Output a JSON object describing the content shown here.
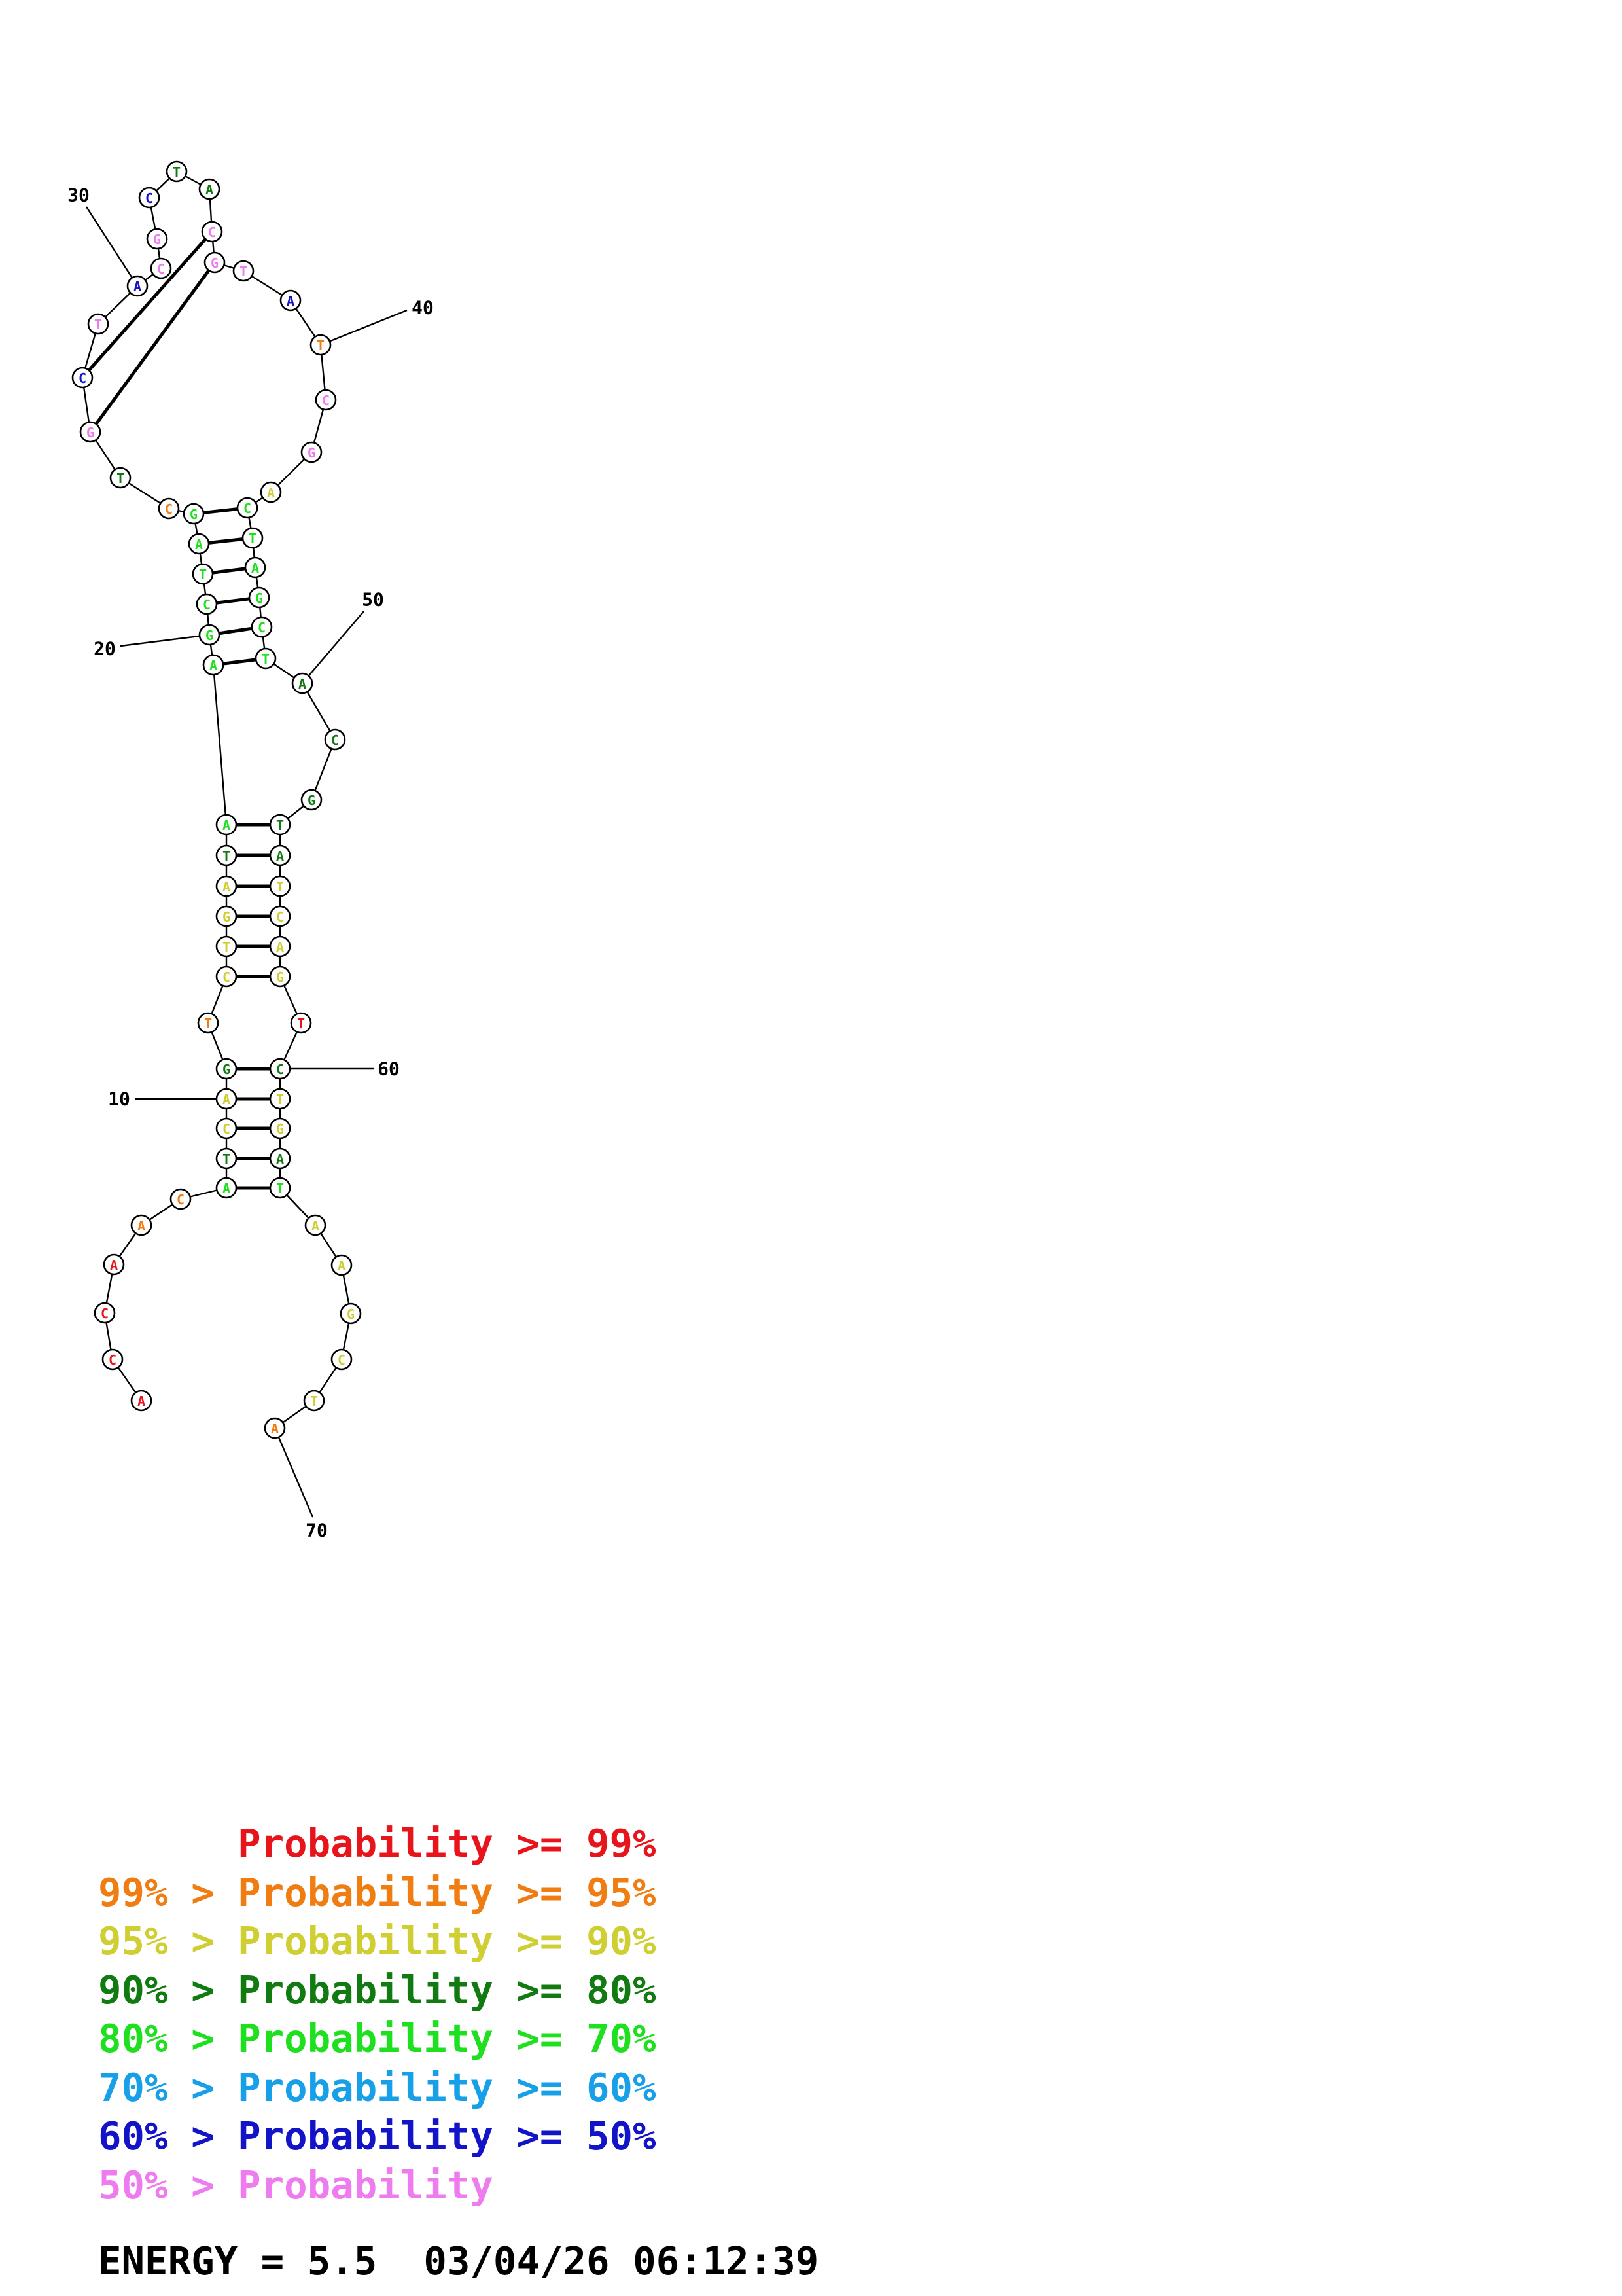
{
  "colors": {
    "p99": "#e8141b",
    "p95": "#f07d12",
    "p90": "#cfcf33",
    "p80": "#117a11",
    "p70": "#1ee01e",
    "p60": "#17a0e8",
    "p50": "#1313c8",
    "plow": "#ef7cef"
  },
  "nucleotides": [
    {
      "i": 1,
      "b": "A",
      "c": "p99"
    },
    {
      "i": 2,
      "b": "C",
      "c": "p99"
    },
    {
      "i": 3,
      "b": "C",
      "c": "p99"
    },
    {
      "i": 4,
      "b": "A",
      "c": "p99"
    },
    {
      "i": 5,
      "b": "A",
      "c": "p95"
    },
    {
      "i": 6,
      "b": "C",
      "c": "p95"
    },
    {
      "i": 7,
      "b": "A",
      "c": "p70"
    },
    {
      "i": 8,
      "b": "T",
      "c": "p80"
    },
    {
      "i": 9,
      "b": "C",
      "c": "p90"
    },
    {
      "i": 10,
      "b": "A",
      "c": "p90"
    },
    {
      "i": 11,
      "b": "G",
      "c": "p80"
    },
    {
      "i": 12,
      "b": "T",
      "c": "p95"
    },
    {
      "i": 13,
      "b": "C",
      "c": "p90"
    },
    {
      "i": 14,
      "b": "T",
      "c": "p90"
    },
    {
      "i": 15,
      "b": "G",
      "c": "p90"
    },
    {
      "i": 16,
      "b": "A",
      "c": "p90"
    },
    {
      "i": 17,
      "b": "T",
      "c": "p80"
    },
    {
      "i": 18,
      "b": "A",
      "c": "p70"
    },
    {
      "i": 19,
      "b": "A",
      "c": "p70"
    },
    {
      "i": 20,
      "b": "G",
      "c": "p70"
    },
    {
      "i": 21,
      "b": "C",
      "c": "p70"
    },
    {
      "i": 22,
      "b": "T",
      "c": "p70"
    },
    {
      "i": 23,
      "b": "A",
      "c": "p70"
    },
    {
      "i": 24,
      "b": "G",
      "c": "p70"
    },
    {
      "i": 25,
      "b": "C",
      "c": "p95"
    },
    {
      "i": 26,
      "b": "T",
      "c": "p80"
    },
    {
      "i": 27,
      "b": "G",
      "c": "plow"
    },
    {
      "i": 28,
      "b": "C",
      "c": "p50"
    },
    {
      "i": 29,
      "b": "T",
      "c": "plow"
    },
    {
      "i": 30,
      "b": "A",
      "c": "p50"
    },
    {
      "i": 31,
      "b": "C",
      "c": "plow"
    },
    {
      "i": 32,
      "b": "G",
      "c": "plow"
    },
    {
      "i": 33,
      "b": "C",
      "c": "p50"
    },
    {
      "i": 34,
      "b": "T",
      "c": "p80"
    },
    {
      "i": 35,
      "b": "A",
      "c": "p80"
    },
    {
      "i": 36,
      "b": "C",
      "c": "plow"
    },
    {
      "i": 37,
      "b": "G",
      "c": "plow"
    },
    {
      "i": 38,
      "b": "T",
      "c": "plow"
    },
    {
      "i": 39,
      "b": "A",
      "c": "p50"
    },
    {
      "i": 40,
      "b": "T",
      "c": "p95"
    },
    {
      "i": 41,
      "b": "C",
      "c": "plow"
    },
    {
      "i": 42,
      "b": "G",
      "c": "plow"
    },
    {
      "i": 43,
      "b": "A",
      "c": "p90"
    },
    {
      "i": 44,
      "b": "C",
      "c": "p70"
    },
    {
      "i": 45,
      "b": "T",
      "c": "p70"
    },
    {
      "i": 46,
      "b": "A",
      "c": "p70"
    },
    {
      "i": 47,
      "b": "G",
      "c": "p70"
    },
    {
      "i": 48,
      "b": "C",
      "c": "p70"
    },
    {
      "i": 49,
      "b": "T",
      "c": "p70"
    },
    {
      "i": 50,
      "b": "A",
      "c": "p80"
    },
    {
      "i": 51,
      "b": "C",
      "c": "p80"
    },
    {
      "i": 52,
      "b": "G",
      "c": "p80"
    },
    {
      "i": 53,
      "b": "T",
      "c": "p80"
    },
    {
      "i": 54,
      "b": "A",
      "c": "p80"
    },
    {
      "i": 55,
      "b": "T",
      "c": "p90"
    },
    {
      "i": 56,
      "b": "C",
      "c": "p90"
    },
    {
      "i": 57,
      "b": "A",
      "c": "p90"
    },
    {
      "i": 58,
      "b": "G",
      "c": "p90"
    },
    {
      "i": 59,
      "b": "T",
      "c": "p99"
    },
    {
      "i": 60,
      "b": "C",
      "c": "p80"
    },
    {
      "i": 61,
      "b": "T",
      "c": "p90"
    },
    {
      "i": 62,
      "b": "G",
      "c": "p90"
    },
    {
      "i": 63,
      "b": "A",
      "c": "p80"
    },
    {
      "i": 64,
      "b": "T",
      "c": "p70"
    },
    {
      "i": 65,
      "b": "A",
      "c": "p90"
    },
    {
      "i": 66,
      "b": "A",
      "c": "p90"
    },
    {
      "i": 67,
      "b": "G",
      "c": "p90"
    },
    {
      "i": 68,
      "b": "C",
      "c": "p90"
    },
    {
      "i": 69,
      "b": "T",
      "c": "p90"
    },
    {
      "i": 70,
      "b": "A",
      "c": "p95"
    }
  ],
  "pairs": [
    [
      7,
      64
    ],
    [
      8,
      63
    ],
    [
      9,
      62
    ],
    [
      10,
      61
    ],
    [
      11,
      60
    ],
    [
      13,
      58
    ],
    [
      14,
      57
    ],
    [
      15,
      56
    ],
    [
      16,
      55
    ],
    [
      17,
      54
    ],
    [
      18,
      53
    ],
    [
      19,
      49
    ],
    [
      20,
      48
    ],
    [
      21,
      47
    ],
    [
      22,
      46
    ],
    [
      23,
      45
    ],
    [
      24,
      44
    ],
    [
      27,
      37
    ],
    [
      28,
      36
    ]
  ],
  "tick_labels": [
    "10",
    "20",
    "30",
    "40",
    "50",
    "60",
    "70"
  ],
  "legend": [
    {
      "prefix": "",
      "gt": "",
      "label": "Probability",
      "op": ">=",
      "value": "99%",
      "color": "p99"
    },
    {
      "prefix": "99%",
      "gt": ">",
      "label": "Probability",
      "op": ">=",
      "value": "95%",
      "color": "p95"
    },
    {
      "prefix": "95%",
      "gt": ">",
      "label": "Probability",
      "op": ">=",
      "value": "90%",
      "color": "p90"
    },
    {
      "prefix": "90%",
      "gt": ">",
      "label": "Probability",
      "op": ">=",
      "value": "80%",
      "color": "p80"
    },
    {
      "prefix": "80%",
      "gt": ">",
      "label": "Probability",
      "op": ">=",
      "value": "70%",
      "color": "p70"
    },
    {
      "prefix": "70%",
      "gt": ">",
      "label": "Probability",
      "op": ">=",
      "value": "60%",
      "color": "p60"
    },
    {
      "prefix": "60%",
      "gt": ">",
      "label": "Probability",
      "op": ">=",
      "value": "50%",
      "color": "p50"
    },
    {
      "prefix": "50%",
      "gt": ">",
      "label": "Probability",
      "op": "",
      "value": "",
      "color": "plow"
    }
  ],
  "energy": {
    "label": "ENERGY",
    "eq": "=",
    "value": "5.5",
    "date": "03/04/26",
    "time": "06:12:39"
  }
}
